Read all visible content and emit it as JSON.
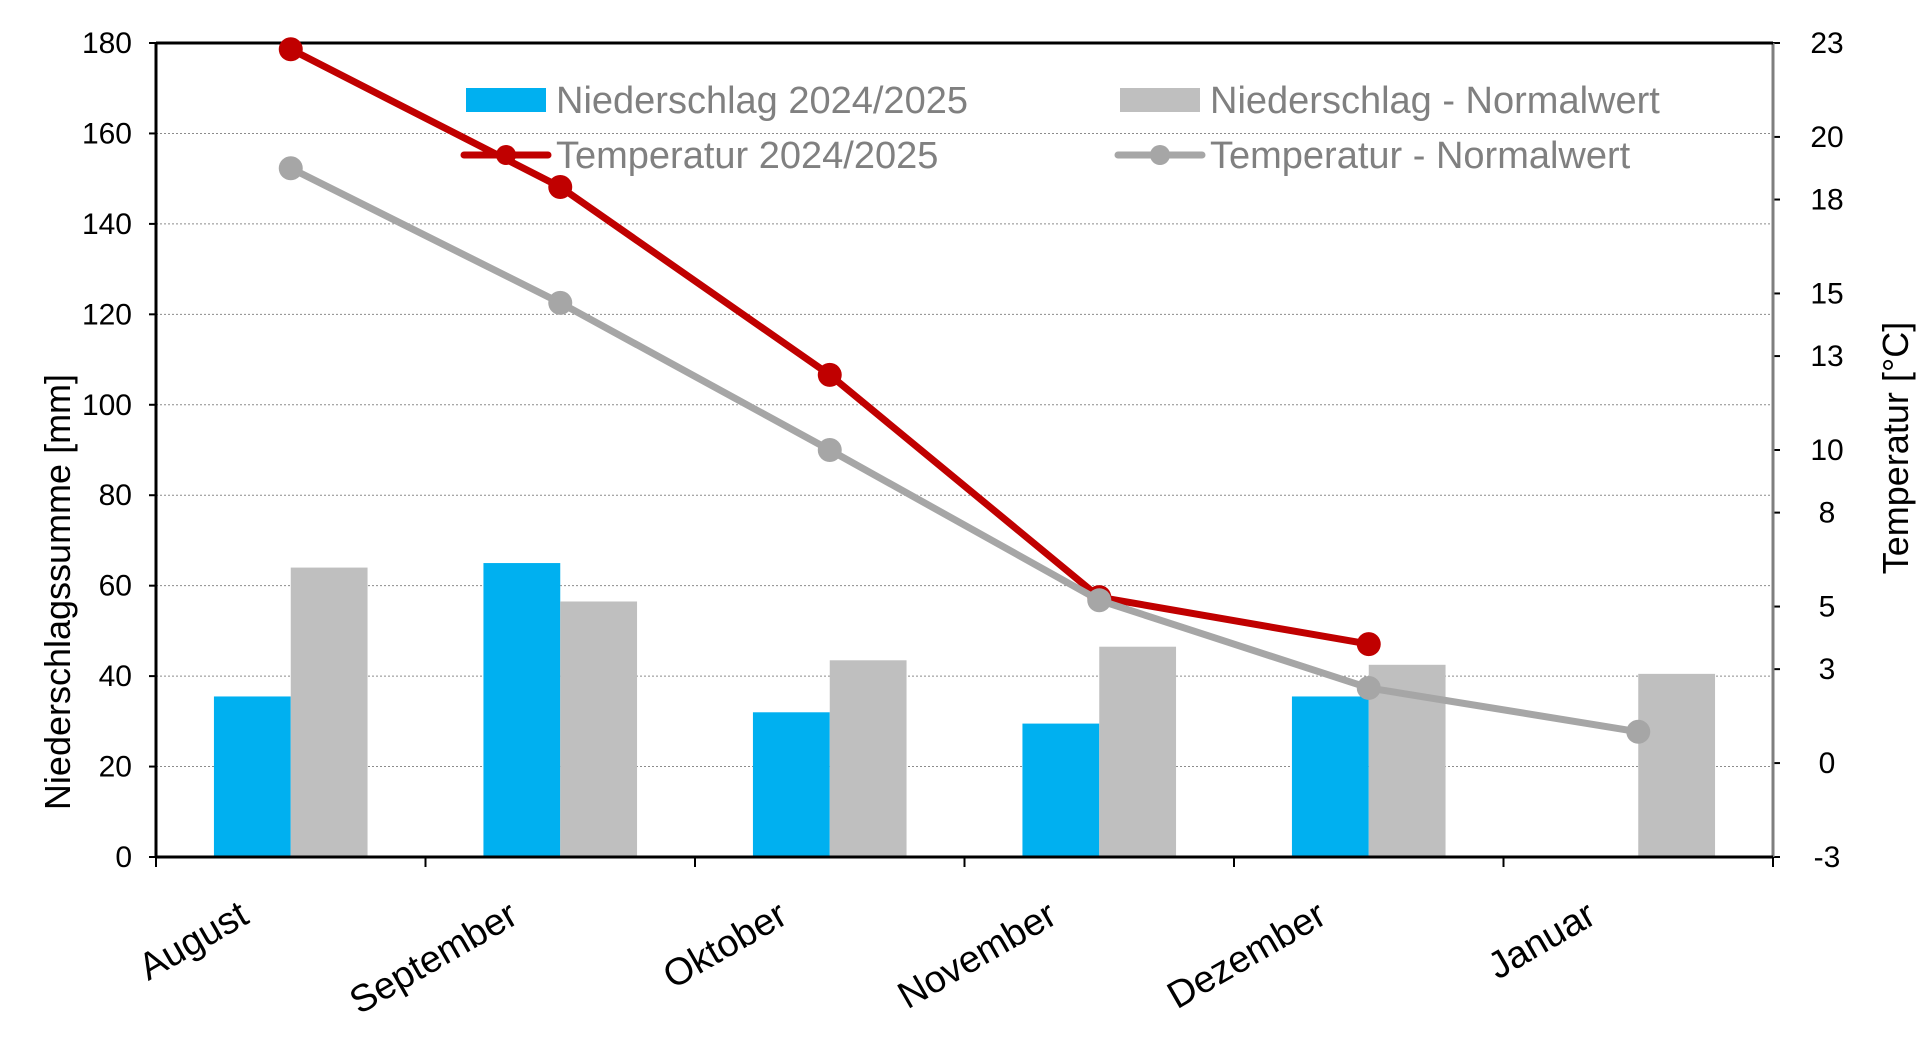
{
  "chart_data": {
    "type": "bar",
    "categories": [
      "August",
      "September",
      "Oktober",
      "November",
      "Dezember",
      "Januar"
    ],
    "bar_series": [
      {
        "name": "Niederschlag 2024/2025",
        "color": "#00B0F0",
        "values": [
          35.5,
          65,
          32,
          29.5,
          35.5,
          null
        ]
      },
      {
        "name": "Niederschlag - Normalwert",
        "color": "#BFBFBF",
        "values": [
          64,
          56.5,
          43.5,
          46.5,
          42.5,
          40.5
        ]
      }
    ],
    "line_series": [
      {
        "name": "Temperatur 2024/2025",
        "color": "#C00000",
        "values": [
          22.8,
          18.4,
          12.4,
          5.3,
          3.8,
          null
        ]
      },
      {
        "name": "Temperatur - Normalwert",
        "color": "#A6A6A6",
        "values": [
          19.0,
          14.7,
          10.0,
          5.2,
          2.4,
          1.0
        ]
      }
    ],
    "ylabel_left": "Niederschlagssumme [mm]",
    "ylabel_right": "Temperatur [°C]",
    "ylim_left": [
      0,
      180
    ],
    "ylim_right": [
      -3,
      23
    ],
    "yticks_left": [
      "0",
      "20",
      "40",
      "60",
      "80",
      "100",
      "120",
      "140",
      "160",
      "180"
    ],
    "yticks_right": [
      "-3",
      "0",
      "3",
      "5",
      "8",
      "10",
      "13",
      "15",
      "18",
      "20",
      "23"
    ],
    "grid": true,
    "legend_position": "top"
  }
}
